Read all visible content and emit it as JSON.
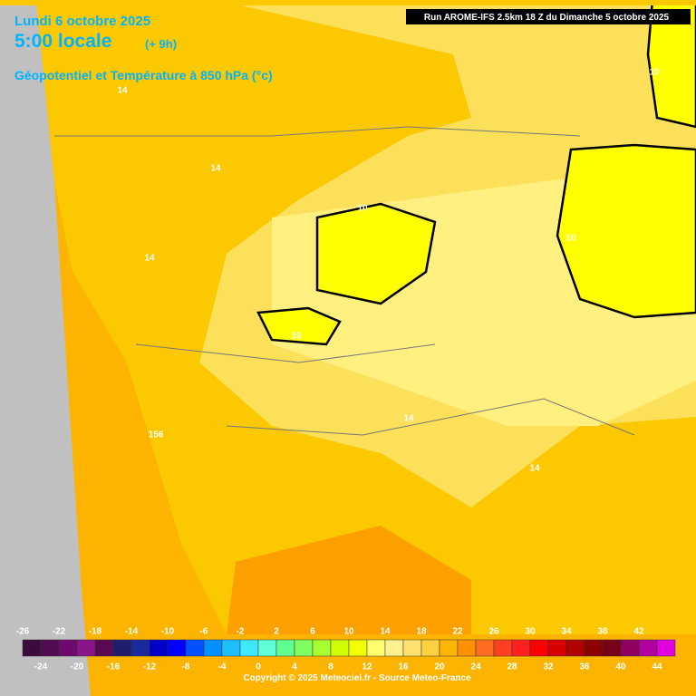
{
  "header": {
    "date": "Lundi 6 octobre 2025",
    "time": "5:00 locale",
    "offset": "(+ 9h)",
    "field": "Géopotentiel et Température à 850 hPa (°c)",
    "run": "Run AROME-IFS 2.5km 18 Z du Dimanche 5 octobre 2025"
  },
  "contour_labels": [
    "14",
    "14",
    "14",
    "10",
    "10",
    "10",
    "10",
    "156",
    "14",
    "14"
  ],
  "colorbar": {
    "top_labels": [
      "-26",
      "-22",
      "-18",
      "-14",
      "-10",
      "-6",
      "-2",
      "2",
      "6",
      "10",
      "14",
      "18",
      "22",
      "26",
      "30",
      "34",
      "38",
      "42"
    ],
    "bottom_labels": [
      "-24",
      "-20",
      "-16",
      "-12",
      "-8",
      "-4",
      "0",
      "4",
      "8",
      "12",
      "16",
      "20",
      "24",
      "28",
      "32",
      "36",
      "40",
      "44"
    ],
    "colors": [
      "#3c0a3c",
      "#520a52",
      "#6e0a6e",
      "#8a148a",
      "#5a0a50",
      "#1e1e6e",
      "#1a2a9e",
      "#0000c8",
      "#0000ff",
      "#0050ff",
      "#0090ff",
      "#20c0ff",
      "#40e8ff",
      "#60ffd8",
      "#60ff90",
      "#80ff60",
      "#a8ff30",
      "#d0ff00",
      "#f4ff00",
      "#ffff70",
      "#fff090",
      "#ffe070",
      "#ffd040",
      "#ffb400",
      "#ff9000",
      "#ff6c20",
      "#ff4020",
      "#ff2020",
      "#ff0000",
      "#d80000",
      "#b00000",
      "#8c0000",
      "#780018",
      "#900060",
      "#b000a0",
      "#e000e0"
    ]
  },
  "footer": "Copyright © 2025 Meteociel.fr - Source Meteo-France"
}
